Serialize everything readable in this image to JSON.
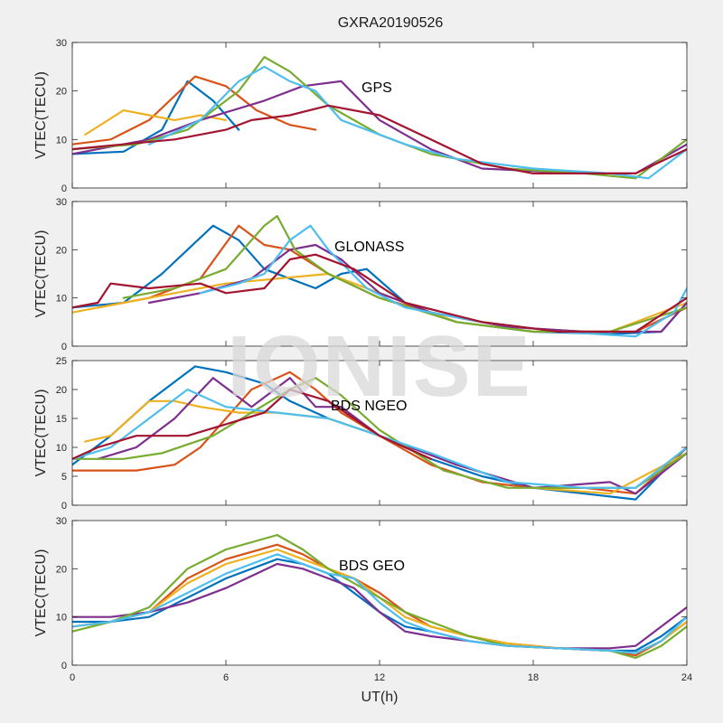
{
  "figure": {
    "title": "GXRA20190526",
    "xlabel": "UT(h)",
    "watermark": "IONISE"
  },
  "colors": [
    "#0072BD",
    "#D95319",
    "#EDB120",
    "#7E2F8E",
    "#77AC30",
    "#4DBEEE",
    "#A2142F"
  ],
  "chart_data": [
    {
      "type": "line",
      "annotation": "GPS",
      "ylabel": "VTEC(TECU)",
      "xlim": [
        0,
        24
      ],
      "ylim": [
        0,
        30
      ],
      "xticks": [
        0,
        6,
        12,
        18,
        24
      ],
      "yticks": [
        0,
        10,
        20,
        30
      ],
      "grid": false,
      "series": [
        {
          "x": [
            0,
            2,
            3.5,
            4.5,
            5.5,
            6.5
          ],
          "y": [
            7,
            7.5,
            12,
            22,
            18,
            12
          ]
        },
        {
          "x": [
            0,
            1.5,
            3,
            4.8,
            6,
            7.2,
            8.5,
            9.5
          ],
          "y": [
            9,
            10,
            14,
            23,
            21,
            16,
            13,
            12
          ]
        },
        {
          "x": [
            0.5,
            2,
            3,
            4,
            5,
            6
          ],
          "y": [
            11,
            16,
            15,
            14,
            15,
            14
          ]
        },
        {
          "x": [
            0,
            3,
            5,
            7.5,
            9,
            10.5,
            12,
            14,
            16,
            18,
            20,
            22,
            24
          ],
          "y": [
            7,
            10,
            14,
            18,
            21,
            22,
            14,
            8,
            4,
            3.5,
            3,
            3,
            9
          ]
        },
        {
          "x": [
            0,
            2.5,
            4.5,
            6.5,
            7.5,
            8.5,
            10,
            12,
            14,
            17,
            20,
            22,
            24
          ],
          "y": [
            8,
            9,
            12,
            20,
            27,
            24,
            17,
            11,
            7,
            4,
            3,
            2,
            10
          ]
        },
        {
          "x": [
            3,
            5,
            6.5,
            7.5,
            8.5,
            9.5,
            10.5,
            13,
            15,
            18,
            21,
            22.5,
            24
          ],
          "y": [
            9,
            14,
            22,
            25,
            22,
            20,
            14,
            9,
            6,
            4,
            3,
            2,
            8
          ]
        },
        {
          "x": [
            0,
            2,
            4,
            6,
            7,
            8.5,
            10,
            12,
            14,
            16,
            18,
            20,
            22,
            24
          ],
          "y": [
            8,
            9,
            10,
            12,
            14,
            15,
            17,
            15,
            10,
            5,
            3,
            3,
            3,
            8
          ]
        }
      ]
    },
    {
      "type": "line",
      "annotation": "GLONASS",
      "ylabel": "VTEC(TECU)",
      "xlim": [
        0,
        24
      ],
      "ylim": [
        0,
        30
      ],
      "xticks": [
        0,
        6,
        12,
        18,
        24
      ],
      "yticks": [
        0,
        10,
        20,
        30
      ],
      "grid": false,
      "series": [
        {
          "x": [
            0,
            2,
            3.5,
            4.5,
            5.5,
            6.5,
            7.5,
            9.5,
            10.5,
            11.5,
            13,
            15,
            18,
            21,
            23,
            24
          ],
          "y": [
            8,
            9,
            15,
            20,
            25,
            22,
            16,
            12,
            15,
            16,
            9,
            5,
            3,
            2.5,
            3,
            9
          ]
        },
        {
          "x": [
            1,
            3,
            5,
            6.5,
            7.5,
            8.5,
            10,
            12,
            14,
            17,
            20,
            22,
            24
          ],
          "y": [
            8,
            10,
            14,
            25,
            21,
            20,
            15,
            10,
            7,
            4,
            3,
            3,
            8
          ]
        },
        {
          "x": [
            0,
            2,
            4,
            6,
            8,
            10,
            12,
            15,
            18,
            21,
            24
          ],
          "y": [
            7,
            9,
            11,
            13,
            14,
            15,
            11,
            5,
            3,
            3,
            9
          ]
        },
        {
          "x": [
            3,
            5,
            7,
            8.5,
            9.5,
            10.5,
            12,
            14,
            17,
            20,
            23,
            24
          ],
          "y": [
            9,
            11,
            14,
            20,
            21,
            18,
            11,
            7,
            4,
            3,
            3,
            9
          ]
        },
        {
          "x": [
            2,
            4,
            6,
            7.5,
            8,
            8.7,
            10,
            12,
            15,
            18,
            21,
            24
          ],
          "y": [
            10,
            12,
            16,
            25,
            27,
            20,
            15,
            10,
            5,
            3,
            3,
            8
          ]
        },
        {
          "x": [
            5,
            6.5,
            7.5,
            8.5,
            9.3,
            10,
            11.5,
            13,
            16,
            19,
            22,
            23.5,
            24
          ],
          "y": [
            11,
            13,
            15,
            22,
            25,
            20,
            12,
            8,
            5,
            3,
            2,
            7,
            12
          ]
        },
        {
          "x": [
            0,
            1,
            1.5,
            3,
            5,
            6,
            7.5,
            8.5,
            9.5,
            11,
            13,
            16,
            19,
            22,
            24
          ],
          "y": [
            8,
            9,
            13,
            12,
            13,
            11,
            12,
            18,
            19,
            16,
            9,
            5,
            3,
            3,
            10
          ]
        }
      ]
    },
    {
      "type": "line",
      "annotation": "BDS NGEO",
      "ylabel": "VTEC(TECU)",
      "xlim": [
        0,
        24
      ],
      "ylim": [
        0,
        25
      ],
      "xticks": [
        0,
        6,
        12,
        18,
        24
      ],
      "yticks": [
        0,
        5,
        10,
        15,
        20,
        25
      ],
      "grid": false,
      "series": [
        {
          "x": [
            0,
            1.5,
            3,
            4.8,
            6,
            7.5,
            8.5,
            10,
            12,
            14,
            16,
            18,
            20,
            22,
            24
          ],
          "y": [
            7,
            12,
            18,
            24,
            23,
            21,
            18,
            15,
            12,
            8,
            5,
            3,
            2,
            1,
            10
          ]
        },
        {
          "x": [
            0,
            2.5,
            4,
            5,
            6,
            7,
            8.5,
            9.5,
            10.5,
            12,
            14,
            16,
            18,
            20,
            22,
            24
          ],
          "y": [
            6,
            6,
            7,
            10,
            15,
            20,
            23,
            20,
            16,
            12,
            7,
            4,
            3,
            3,
            2,
            10
          ]
        },
        {
          "x": [
            0.5,
            1.5,
            3,
            4,
            5,
            6.5,
            8,
            10,
            12,
            15,
            18,
            21,
            24
          ],
          "y": [
            11,
            12,
            18,
            18,
            17,
            16,
            16,
            15,
            12,
            7,
            3,
            2,
            9
          ]
        },
        {
          "x": [
            1,
            2.5,
            4,
            5.5,
            7,
            8.5,
            9.5,
            10.5,
            12,
            15,
            18,
            21,
            22,
            24
          ],
          "y": [
            8,
            10,
            15,
            22,
            17,
            22,
            17,
            17,
            12,
            7,
            3,
            4,
            2,
            9
          ]
        },
        {
          "x": [
            0,
            2,
            3.5,
            5.5,
            7,
            8.5,
            9.5,
            10.5,
            12,
            14.5,
            17,
            20,
            22,
            24
          ],
          "y": [
            8,
            8,
            9,
            12,
            16,
            20,
            22,
            19,
            13,
            6,
            3,
            3,
            3,
            9
          ]
        },
        {
          "x": [
            0,
            1.5,
            3,
            4.5,
            6,
            8,
            10,
            12,
            14,
            17,
            20,
            22,
            24
          ],
          "y": [
            8,
            10,
            15,
            20,
            17,
            16,
            15,
            12,
            9,
            4,
            3,
            3,
            10
          ]
        },
        {
          "x": [
            0,
            1,
            2.5,
            4.5,
            6,
            7.5,
            8.5,
            10,
            12,
            14
          ],
          "y": [
            8,
            10,
            12,
            12,
            14,
            16,
            20,
            18,
            12,
            8
          ]
        }
      ]
    },
    {
      "type": "line",
      "annotation": "BDS GEO",
      "ylabel": "VTEC(TECU)",
      "xlim": [
        0,
        24
      ],
      "ylim": [
        0,
        30
      ],
      "xticks": [
        0,
        6,
        12,
        18,
        24
      ],
      "yticks": [
        0,
        10,
        20,
        30
      ],
      "grid": false,
      "series": [
        {
          "x": [
            0,
            1.5,
            3,
            4.5,
            6,
            8,
            9,
            10,
            11,
            12,
            13,
            14,
            15.5,
            17,
            19,
            21,
            22,
            23,
            24
          ],
          "y": [
            9,
            9,
            10,
            14,
            18,
            22,
            21,
            19,
            15,
            11,
            8,
            7,
            5,
            4,
            3.5,
            3,
            3,
            6,
            10
          ]
        },
        {
          "x": [
            0,
            1.5,
            3,
            4.5,
            6,
            8,
            9,
            10,
            11,
            12,
            13,
            14,
            15.5,
            17,
            19,
            21,
            22,
            23,
            24
          ],
          "y": [
            8,
            9,
            11,
            18,
            22,
            25,
            23,
            20,
            18,
            15,
            11,
            8,
            6,
            4.5,
            3.5,
            3,
            2,
            5,
            9
          ]
        },
        {
          "x": [
            0,
            1.5,
            3,
            4.5,
            6,
            8,
            9,
            10,
            11,
            12,
            13,
            14,
            15.5,
            17,
            19,
            21,
            22,
            23,
            24
          ],
          "y": [
            8,
            9,
            11,
            17,
            21,
            24,
            22,
            20,
            18,
            14,
            10,
            8,
            6,
            4.5,
            3.5,
            3,
            2.5,
            5,
            9
          ]
        },
        {
          "x": [
            0,
            1.5,
            3,
            4.5,
            6,
            8,
            9,
            10,
            11,
            12,
            13,
            14,
            15.5,
            17,
            19,
            21,
            22,
            23,
            24
          ],
          "y": [
            10,
            10,
            11,
            13,
            16,
            21,
            20,
            18,
            16,
            11,
            7,
            6,
            5,
            4,
            3.5,
            3.5,
            4,
            8,
            12
          ]
        },
        {
          "x": [
            0,
            1.5,
            3,
            4.5,
            6,
            8,
            9,
            10,
            11,
            12,
            13,
            14,
            15.5,
            17,
            19,
            21,
            22,
            23,
            24
          ],
          "y": [
            7,
            9,
            12,
            20,
            24,
            27,
            24,
            20,
            17,
            14,
            11,
            9,
            6,
            4,
            3.5,
            3,
            1.5,
            4,
            8
          ]
        },
        {
          "x": [
            0,
            1.5,
            3,
            4.5,
            6,
            8,
            9,
            10,
            11,
            12,
            13,
            14,
            15.5,
            17,
            19,
            21,
            22,
            23,
            24
          ],
          "y": [
            8,
            9,
            11,
            15,
            19,
            23,
            21,
            19,
            18,
            13,
            9,
            7,
            5,
            4,
            3.5,
            3,
            2.5,
            5,
            10
          ]
        }
      ]
    }
  ]
}
